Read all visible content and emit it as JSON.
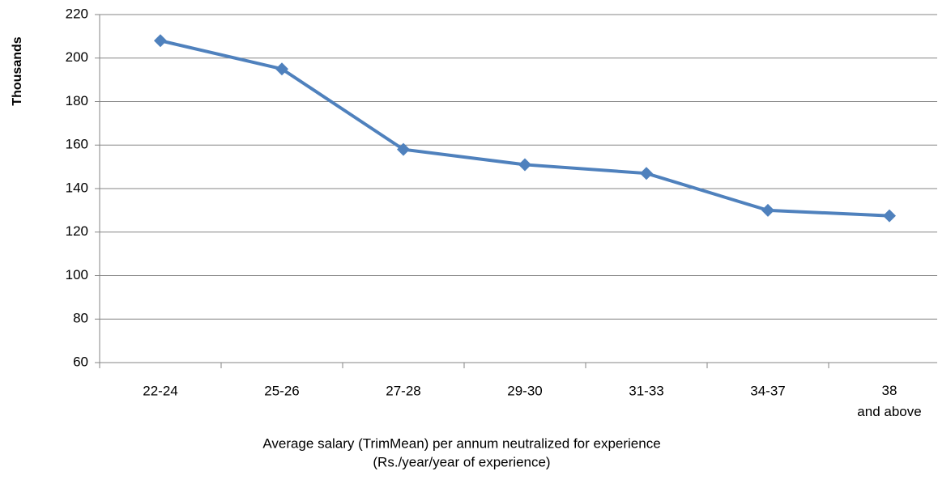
{
  "chart_data": {
    "type": "line",
    "ylabel": "Thousands",
    "xlabel": [
      "Average salary (TrimMean) per annum neutralized for experience",
      "(Rs./year/year of experience)"
    ],
    "categories": [
      "22-24",
      "25-26",
      "27-28",
      "29-30",
      "31-33",
      "34-37",
      "38\nand above"
    ],
    "series": [
      {
        "name": "Average salary",
        "color": "#4f81bd",
        "values": [
          208,
          195,
          158,
          151,
          147,
          130,
          127.5
        ]
      }
    ],
    "ylim": [
      60,
      220
    ],
    "yticks": [
      60,
      80,
      100,
      120,
      140,
      160,
      180,
      200,
      220
    ],
    "grid": true,
    "legend": false
  }
}
